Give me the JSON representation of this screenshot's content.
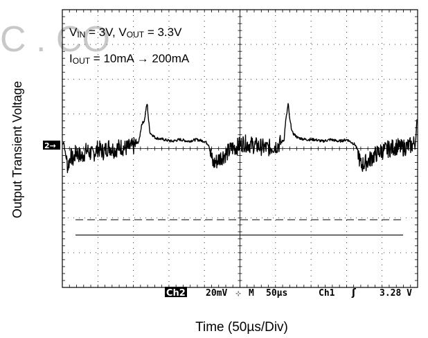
{
  "chart_data": {
    "type": "line",
    "title": "",
    "xlabel": "Time (50µs/Div)",
    "ylabel": "Output Transient Voltage",
    "annotations": {
      "line1": {
        "v1": "V",
        "s1": "IN",
        "t1": " = 3V, V",
        "s2": "OUT",
        "t2": " = 3.3V"
      },
      "line2": {
        "v1": "I",
        "s1": "OUT",
        "t1": " = 10mA → 200mA"
      }
    },
    "divisions": {
      "x": 10,
      "y": 8
    },
    "x_per_div_us": 50,
    "y_per_div_mV": 20,
    "grid": true,
    "channel_marker": "2→",
    "ch2_waveform_mV": [
      [
        0,
        0
      ],
      [
        0.05,
        2
      ],
      [
        0.1,
        -4
      ],
      [
        0.2,
        -13
      ],
      [
        0.3,
        -6
      ],
      [
        0.4,
        -9
      ],
      [
        0.5,
        -4
      ],
      [
        0.7,
        -7
      ],
      [
        0.9,
        -3
      ],
      [
        1.1,
        -6
      ],
      [
        1.3,
        -2
      ],
      [
        1.5,
        -4
      ],
      [
        1.7,
        -1
      ],
      [
        1.9,
        -3
      ],
      [
        2.1,
        -1
      ],
      [
        2.3,
        -2
      ],
      [
        2.6,
        -1
      ],
      [
        2.8,
        2
      ],
      [
        2.9,
        12
      ],
      [
        3.0,
        14
      ],
      [
        3.05,
        20
      ],
      [
        3.1,
        24
      ],
      [
        3.15,
        14
      ],
      [
        3.2,
        7
      ],
      [
        3.4,
        4
      ],
      [
        3.7,
        3
      ],
      [
        4.0,
        2
      ],
      [
        4.3,
        3
      ],
      [
        4.6,
        2
      ],
      [
        4.9,
        3
      ],
      [
        5.2,
        2
      ],
      [
        5.35,
        0
      ],
      [
        5.4,
        -4
      ],
      [
        5.5,
        -11
      ],
      [
        5.6,
        -10
      ],
      [
        5.8,
        -7
      ],
      [
        6.0,
        -5
      ],
      [
        6.2,
        -2
      ],
      [
        6.4,
        -1
      ],
      [
        6.6,
        1
      ],
      [
        6.9,
        0
      ],
      [
        7.2,
        -1
      ],
      [
        7.5,
        -2
      ],
      [
        7.7,
        -1
      ],
      [
        7.9,
        0
      ],
      [
        8.1,
        3
      ],
      [
        8.15,
        13
      ],
      [
        8.2,
        18
      ],
      [
        8.25,
        24
      ],
      [
        8.3,
        15
      ],
      [
        8.4,
        7
      ],
      [
        8.6,
        4
      ],
      [
        8.9,
        3
      ],
      [
        9.2,
        3
      ],
      [
        9.5,
        2
      ],
      [
        9.8,
        3
      ],
      [
        10.1,
        2
      ],
      [
        10.4,
        3
      ],
      [
        10.7,
        0
      ],
      [
        10.8,
        -4
      ],
      [
        10.9,
        -12
      ],
      [
        11.0,
        -11
      ],
      [
        11.2,
        -9
      ],
      [
        11.4,
        -6
      ],
      [
        11.6,
        -4
      ],
      [
        11.8,
        -3
      ],
      [
        12.0,
        -2
      ],
      [
        12.2,
        -1
      ],
      [
        12.4,
        -2
      ],
      [
        12.6,
        -1
      ],
      [
        12.8,
        0
      ],
      [
        12.9,
        2
      ],
      [
        12.95,
        14
      ]
    ],
    "noise_mV": 5,
    "dashed_level_div": -2.16,
    "solid_level_div": -2.6,
    "status_bar": {
      "ch": "Ch2",
      "scale": "20mV",
      "bw": "⊹",
      "m": "M",
      "time": "50µs",
      "trig_ch": "Ch1",
      "slope": "ʃ",
      "level": "3.28 V"
    }
  }
}
